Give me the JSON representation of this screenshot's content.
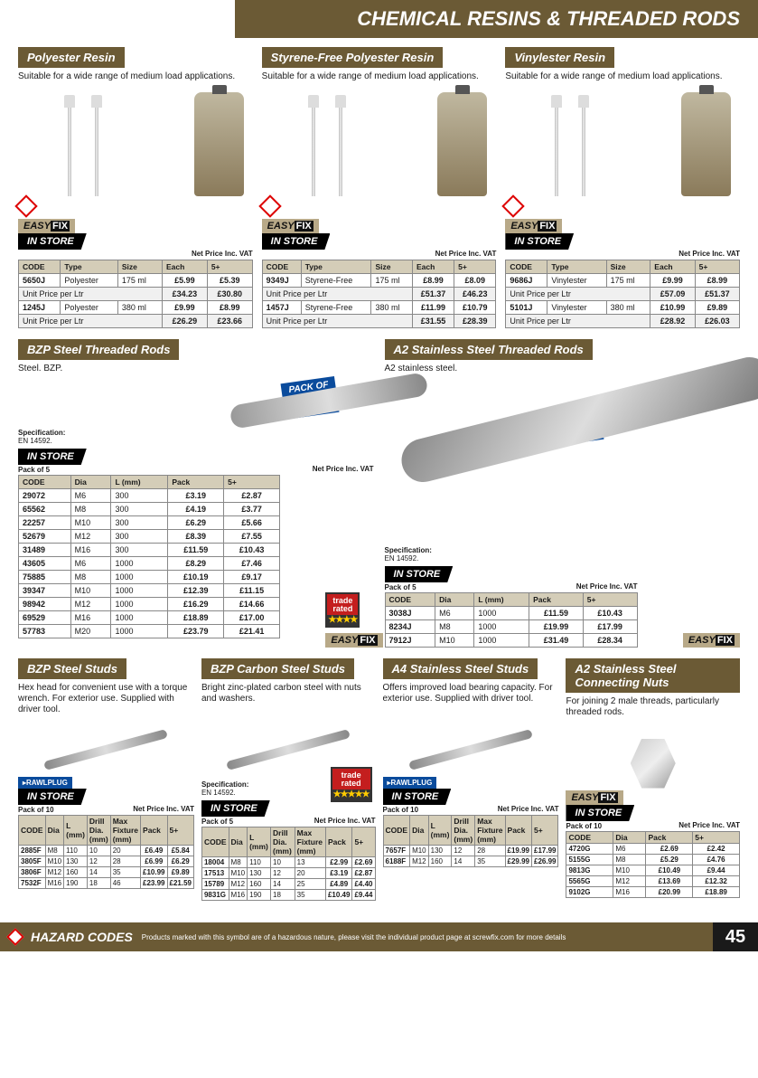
{
  "page": {
    "banner": "CHEMICAL RESINS & THREADED RODS",
    "number": "45",
    "hazard_label": "HAZARD CODES",
    "hazard_text": "Products marked with this symbol are of a hazardous nature, please visit the individual product page at screwfix.com for more details"
  },
  "labels": {
    "in_store": "IN STORE",
    "net_price": "Net Price Inc. VAT",
    "code": "CODE",
    "type": "Type",
    "size": "Size",
    "each": "Each",
    "five_plus": "5+",
    "unit_price": "Unit Price per Ltr",
    "dia": "Dia",
    "l_mm": "L (mm)",
    "pack": "Pack",
    "pack5": "Pack of 5",
    "pack10": "Pack of 10",
    "spec_label": "Specification:",
    "spec_val": "EN 14592.",
    "pack_of": "PACK OF",
    "pack_num": "5",
    "l_mm_s": "L (mm)",
    "drill": "Drill Dia. (mm)",
    "maxfix": "Max Fixture (mm)"
  },
  "brands": {
    "easy": "EASY",
    "fix": "FIX",
    "rawl": "RAWLPLUG",
    "trade1": "trade",
    "trade2": "rated"
  },
  "resins": [
    {
      "title": "Polyester Resin",
      "desc": "Suitable for a wide range of medium load applications.",
      "rows": [
        {
          "code": "5650J",
          "type": "Polyester",
          "size": "175 ml",
          "each": "£5.99",
          "five": "£5.39"
        },
        {
          "unit": true,
          "each": "£34.23",
          "five": "£30.80"
        },
        {
          "code": "1245J",
          "type": "Polyester",
          "size": "380 ml",
          "each": "£9.99",
          "five": "£8.99"
        },
        {
          "unit": true,
          "each": "£26.29",
          "five": "£23.66"
        }
      ]
    },
    {
      "title": "Styrene-Free Polyester Resin",
      "desc": "Suitable for a wide range of medium load applications.",
      "rows": [
        {
          "code": "9349J",
          "type": "Styrene-Free",
          "size": "175 ml",
          "each": "£8.99",
          "five": "£8.09"
        },
        {
          "unit": true,
          "each": "£51.37",
          "five": "£46.23"
        },
        {
          "code": "1457J",
          "type": "Styrene-Free",
          "size": "380 ml",
          "each": "£11.99",
          "five": "£10.79"
        },
        {
          "unit": true,
          "each": "£31.55",
          "five": "£28.39"
        }
      ]
    },
    {
      "title": "Vinylester Resin",
      "desc": "Suitable for a wide range of medium load applications.",
      "rows": [
        {
          "code": "9686J",
          "type": "Vinylester",
          "size": "175 ml",
          "each": "£9.99",
          "five": "£8.99"
        },
        {
          "unit": true,
          "each": "£57.09",
          "five": "£51.37"
        },
        {
          "code": "5101J",
          "type": "Vinylester",
          "size": "380 ml",
          "each": "£10.99",
          "five": "£9.89"
        },
        {
          "unit": true,
          "each": "£28.92",
          "five": "£26.03"
        }
      ]
    }
  ],
  "bzp_rods": {
    "title": "BZP Steel Threaded Rods",
    "desc": "Steel. BZP.",
    "rows": [
      {
        "code": "29072",
        "dia": "M6",
        "l": "300",
        "pack": "£3.19",
        "five": "£2.87"
      },
      {
        "code": "65562",
        "dia": "M8",
        "l": "300",
        "pack": "£4.19",
        "five": "£3.77"
      },
      {
        "code": "22257",
        "dia": "M10",
        "l": "300",
        "pack": "£6.29",
        "five": "£5.66"
      },
      {
        "code": "52679",
        "dia": "M12",
        "l": "300",
        "pack": "£8.39",
        "five": "£7.55"
      },
      {
        "code": "31489",
        "dia": "M16",
        "l": "300",
        "pack": "£11.59",
        "five": "£10.43"
      },
      {
        "code": "43605",
        "dia": "M6",
        "l": "1000",
        "pack": "£8.29",
        "five": "£7.46"
      },
      {
        "code": "75885",
        "dia": "M8",
        "l": "1000",
        "pack": "£10.19",
        "five": "£9.17"
      },
      {
        "code": "39347",
        "dia": "M10",
        "l": "1000",
        "pack": "£12.39",
        "five": "£11.15"
      },
      {
        "code": "98942",
        "dia": "M12",
        "l": "1000",
        "pack": "£16.29",
        "five": "£14.66"
      },
      {
        "code": "69529",
        "dia": "M16",
        "l": "1000",
        "pack": "£18.89",
        "five": "£17.00"
      },
      {
        "code": "57783",
        "dia": "M20",
        "l": "1000",
        "pack": "£23.79",
        "five": "£21.41"
      }
    ]
  },
  "a2_rods": {
    "title": "A2 Stainless Steel Threaded Rods",
    "desc": "A2 stainless steel.",
    "rows": [
      {
        "code": "3038J",
        "dia": "M6",
        "l": "1000",
        "pack": "£11.59",
        "five": "£10.43"
      },
      {
        "code": "8234J",
        "dia": "M8",
        "l": "1000",
        "pack": "£19.99",
        "five": "£17.99"
      },
      {
        "code": "7912J",
        "dia": "M10",
        "l": "1000",
        "pack": "£31.49",
        "five": "£28.34"
      }
    ]
  },
  "studs": [
    {
      "title": "BZP Steel Studs",
      "desc": "Hex head for convenient use with a torque wrench. For exterior use. Supplied with driver tool.",
      "pack": "Pack of 10",
      "brand": "rawl",
      "cols": [
        "CODE",
        "Dia",
        "L (mm)",
        "Drill Dia. (mm)",
        "Max Fixture (mm)",
        "Pack",
        "5+"
      ],
      "rows": [
        {
          "c": [
            "2885F",
            "M8",
            "110",
            "10",
            "20",
            "£6.49",
            "£5.84"
          ]
        },
        {
          "c": [
            "3805F",
            "M10",
            "130",
            "12",
            "28",
            "£6.99",
            "£6.29"
          ]
        },
        {
          "c": [
            "3806F",
            "M12",
            "160",
            "14",
            "35",
            "£10.99",
            "£9.89"
          ]
        },
        {
          "c": [
            "7532F",
            "M16",
            "190",
            "18",
            "46",
            "£23.99",
            "£21.59"
          ]
        }
      ]
    },
    {
      "title": "BZP Carbon Steel Studs",
      "desc": "Bright zinc-plated carbon steel with nuts and washers.",
      "pack": "Pack of 5",
      "spec": true,
      "trade": true,
      "stars": "★★★★★",
      "cols": [
        "CODE",
        "Dia",
        "L (mm)",
        "Drill Dia. (mm)",
        "Max Fixture (mm)",
        "Pack",
        "5+"
      ],
      "rows": [
        {
          "c": [
            "18004",
            "M8",
            "110",
            "10",
            "13",
            "£2.99",
            "£2.69"
          ]
        },
        {
          "c": [
            "17513",
            "M10",
            "130",
            "12",
            "20",
            "£3.19",
            "£2.87"
          ]
        },
        {
          "c": [
            "15789",
            "M12",
            "160",
            "14",
            "25",
            "£4.89",
            "£4.40"
          ]
        },
        {
          "c": [
            "9831G",
            "M16",
            "190",
            "18",
            "35",
            "£10.49",
            "£9.44"
          ]
        }
      ]
    },
    {
      "title": "A4 Stainless Steel Studs",
      "desc": "Offers improved load bearing capacity. For exterior use. Supplied with driver tool.",
      "pack": "Pack of 10",
      "brand": "rawl",
      "cols": [
        "CODE",
        "Dia",
        "L (mm)",
        "Drill Dia. (mm)",
        "Max Fixture (mm)",
        "Pack",
        "5+"
      ],
      "rows": [
        {
          "c": [
            "7657F",
            "M10",
            "130",
            "12",
            "28",
            "£19.99",
            "£17.99"
          ]
        },
        {
          "c": [
            "6188F",
            "M12",
            "160",
            "14",
            "35",
            "£29.99",
            "£26.99"
          ]
        }
      ]
    },
    {
      "title": "A2 Stainless Steel Connecting Nuts",
      "desc": "For joining 2 male threads, particularly threaded rods.",
      "pack": "Pack of 10",
      "brand": "easy",
      "nut": true,
      "cols": [
        "CODE",
        "Dia",
        "Pack",
        "5+"
      ],
      "rows": [
        {
          "c": [
            "4720G",
            "M6",
            "£2.69",
            "£2.42"
          ]
        },
        {
          "c": [
            "5155G",
            "M8",
            "£5.29",
            "£4.76"
          ]
        },
        {
          "c": [
            "9813G",
            "M10",
            "£10.49",
            "£9.44"
          ]
        },
        {
          "c": [
            "5565G",
            "M12",
            "£13.69",
            "£12.32"
          ]
        },
        {
          "c": [
            "9102G",
            "M16",
            "£20.99",
            "£18.89"
          ]
        }
      ]
    }
  ]
}
